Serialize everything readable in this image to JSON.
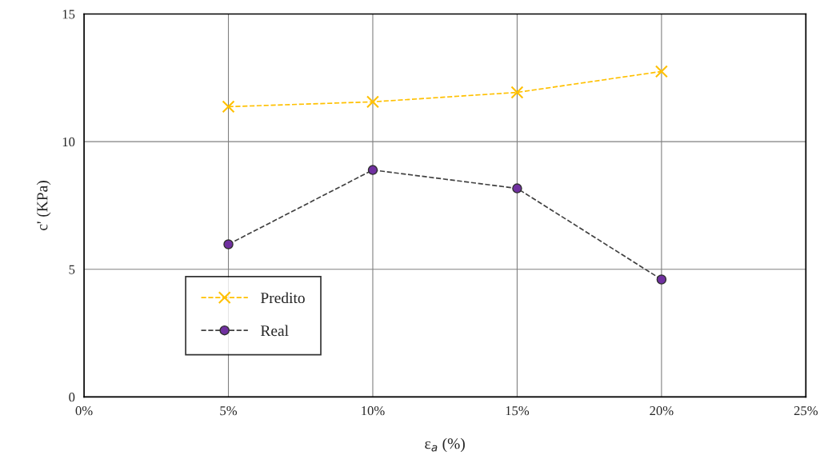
{
  "chart_data": {
    "type": "line",
    "xlabel": "ε$_{a}$ (%)",
    "ylabel": "c' (KPa)",
    "x": [
      5,
      10,
      15,
      20
    ],
    "series": [
      {
        "name": "Predito",
        "color": "#ffc000",
        "values": [
          11.37,
          11.56,
          11.93,
          12.75
        ],
        "marker": "cross"
      },
      {
        "name": "Real",
        "color": "#7030a0",
        "values": [
          5.98,
          8.89,
          8.17,
          4.6
        ],
        "marker": "circle"
      }
    ],
    "xlim": [
      0,
      25
    ],
    "xticks": [
      {
        "value": 0,
        "label": "0%"
      },
      {
        "value": 5,
        "label": "5%"
      },
      {
        "value": 10,
        "label": "10%"
      },
      {
        "value": 15,
        "label": "15%"
      },
      {
        "value": 20,
        "label": "20%"
      },
      {
        "value": 25,
        "label": "25%"
      }
    ],
    "ylim": [
      0,
      15
    ],
    "yticks": [
      0,
      5,
      10,
      15
    ],
    "grid": true,
    "legend": "bottom left",
    "line_style": "dashed"
  }
}
